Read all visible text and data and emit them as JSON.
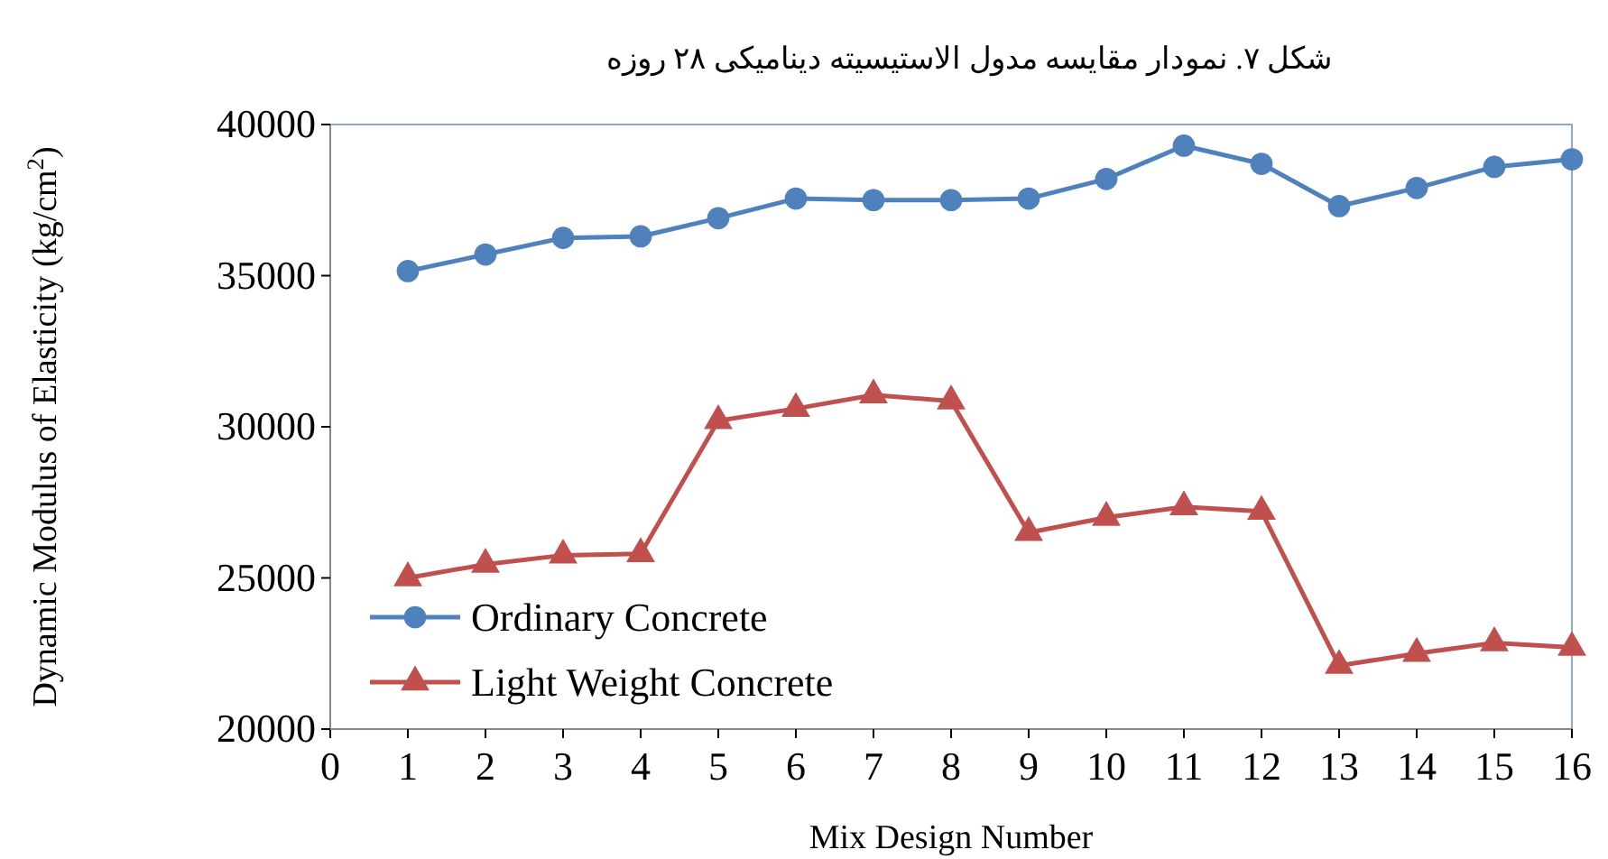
{
  "chart_data": {
    "type": "line",
    "title": "شکل ۷. نمودار مقایسه مدول الاستیسیته دینامیکی ۲۸ روزه",
    "xlabel": "Mix Design Number",
    "ylabel": "Dynamic Modulus of Elasticity (kg/cm$^{2}$)",
    "x": [
      1,
      2,
      3,
      4,
      5,
      6,
      7,
      8,
      9,
      10,
      11,
      12,
      13,
      14,
      15,
      16
    ],
    "series": [
      {
        "name": "Ordinary Concrete",
        "color": "#4f81bd",
        "marker": "circle",
        "values": [
          35150,
          35700,
          36250,
          36300,
          36900,
          37550,
          37500,
          37500,
          37550,
          38200,
          39300,
          38700,
          37300,
          37900,
          38600,
          38850
        ]
      },
      {
        "name": "Light Weight Concrete",
        "color": "#c0504d",
        "marker": "triangle",
        "values": [
          25000,
          25450,
          25750,
          25800,
          30200,
          30600,
          31050,
          30850,
          26500,
          27000,
          27350,
          27200,
          22100,
          22500,
          22850,
          22700
        ]
      }
    ],
    "xlim": [
      0,
      16
    ],
    "xticks": [
      0,
      1,
      2,
      3,
      4,
      5,
      6,
      7,
      8,
      9,
      10,
      11,
      12,
      13,
      14,
      15,
      16
    ],
    "ylim": [
      20000,
      40000
    ],
    "yticks": [
      20000,
      25000,
      30000,
      35000,
      40000
    ],
    "grid": false,
    "legend": "bottom left",
    "line_style": "solid"
  }
}
